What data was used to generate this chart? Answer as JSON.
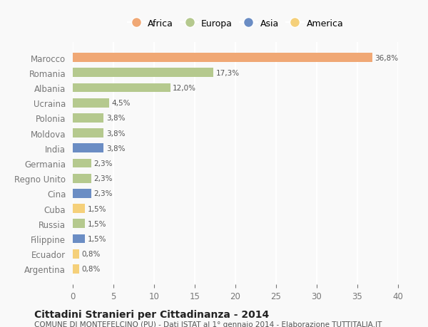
{
  "countries": [
    "Argentina",
    "Ecuador",
    "Filippine",
    "Russia",
    "Cuba",
    "Cina",
    "Regno Unito",
    "Germania",
    "India",
    "Moldova",
    "Polonia",
    "Ucraina",
    "Albania",
    "Romania",
    "Marocco"
  ],
  "values": [
    0.8,
    0.8,
    1.5,
    1.5,
    1.5,
    2.3,
    2.3,
    2.3,
    3.8,
    3.8,
    3.8,
    4.5,
    12.0,
    17.3,
    36.8
  ],
  "labels": [
    "0,8%",
    "0,8%",
    "1,5%",
    "1,5%",
    "1,5%",
    "2,3%",
    "2,3%",
    "2,3%",
    "3,8%",
    "3,8%",
    "3,8%",
    "4,5%",
    "12,0%",
    "17,3%",
    "36,8%"
  ],
  "continents": [
    "America",
    "America",
    "Asia",
    "Europa",
    "America",
    "Asia",
    "Europa",
    "Europa",
    "Asia",
    "Europa",
    "Europa",
    "Europa",
    "Europa",
    "Europa",
    "Africa"
  ],
  "colors": {
    "Africa": "#F0A875",
    "Europa": "#B5C98E",
    "Asia": "#6B8DC4",
    "America": "#F5D07A"
  },
  "legend_order": [
    "Africa",
    "Europa",
    "Asia",
    "America"
  ],
  "title": "Cittadini Stranieri per Cittadinanza - 2014",
  "subtitle": "COMUNE DI MONTEFELCINO (PU) - Dati ISTAT al 1° gennaio 2014 - Elaborazione TUTTITALIA.IT",
  "xlim": [
    0,
    40
  ],
  "xticks": [
    0,
    5,
    10,
    15,
    20,
    25,
    30,
    35,
    40
  ],
  "background_color": "#f9f9f9",
  "grid_color": "#ffffff",
  "bar_height": 0.6
}
